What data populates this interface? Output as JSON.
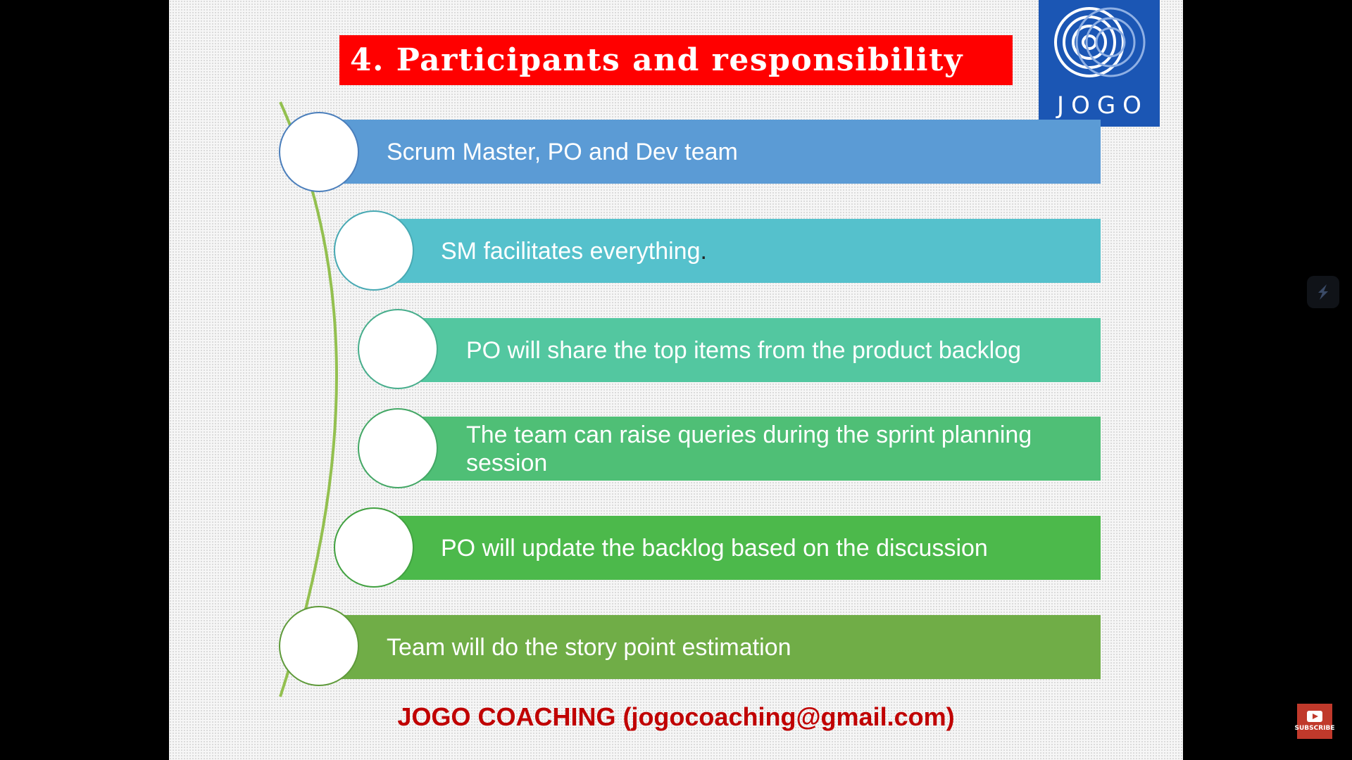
{
  "slide": {
    "title": "4. Participants and responsibility",
    "logo_text": "JOGO",
    "footer": "JOGO COACHING (jogocoaching@gmail.com)",
    "items": [
      {
        "text": "Scrum Master, PO and Dev team",
        "color": "#5b9bd5",
        "border": "#4a7ebb"
      },
      {
        "text": "SM facilitates everything",
        "suffix": ".",
        "color": "#55c1cc",
        "border": "#47a9b3"
      },
      {
        "text": "PO will share the top items from the product backlog",
        "color": "#53c7a0",
        "border": "#46ad8b"
      },
      {
        "text": "The team can raise queries during the sprint planning session",
        "color": "#4fbf76",
        "border": "#43a765"
      },
      {
        "text": "PO will update the backlog based on the discussion",
        "color": "#4cb94b",
        "border": "#41a140"
      },
      {
        "text": "Team will do the story point estimation",
        "color": "#70ad47",
        "border": "#5e9a3a"
      }
    ]
  },
  "overlay": {
    "side_icon": "streamline-icon",
    "subscribe_icon": "subscribe-icon",
    "subscribe_label": "SUBSCRIBE"
  }
}
